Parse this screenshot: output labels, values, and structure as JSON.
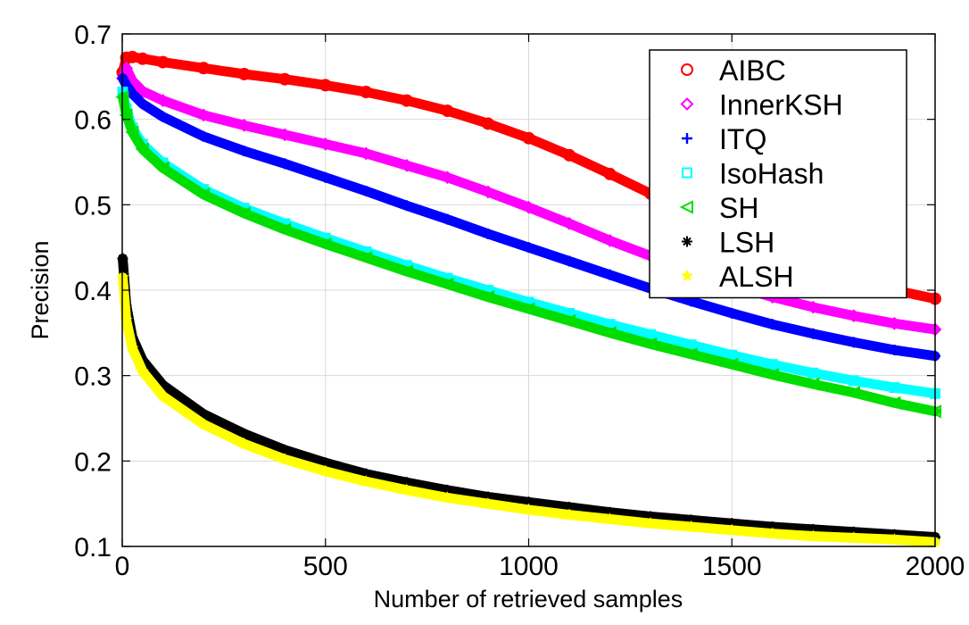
{
  "chart_data": {
    "type": "line",
    "title": "",
    "xlabel": "Number of retrieved samples",
    "ylabel": "Precision",
    "xlim": [
      0,
      2000
    ],
    "ylim": [
      0.1,
      0.7
    ],
    "xticks": [
      0,
      500,
      1000,
      1500,
      2000
    ],
    "xtick_labels": [
      "0",
      "500",
      "1000",
      "1500",
      "2000"
    ],
    "yticks": [
      0.1,
      0.2,
      0.3,
      0.4,
      0.5,
      0.6,
      0.7
    ],
    "ytick_labels": [
      "0.1",
      "0.2",
      "0.3",
      "0.4",
      "0.5",
      "0.6",
      "0.7"
    ],
    "grid": true,
    "legend_position": "top-right",
    "x": [
      1,
      10,
      25,
      50,
      100,
      200,
      300,
      400,
      500,
      600,
      700,
      800,
      900,
      1000,
      1100,
      1200,
      1300,
      1400,
      1500,
      1600,
      1700,
      1800,
      1900,
      2000
    ],
    "series": [
      {
        "name": "AIBC",
        "color": "#ff0000",
        "marker": "circle",
        "values": [
          0.655,
          0.672,
          0.673,
          0.671,
          0.667,
          0.66,
          0.653,
          0.647,
          0.64,
          0.632,
          0.622,
          0.61,
          0.595,
          0.578,
          0.558,
          0.536,
          0.513,
          0.49,
          0.468,
          0.448,
          0.43,
          0.414,
          0.4,
          0.39
        ]
      },
      {
        "name": "InnerKSH",
        "color": "#ff00ff",
        "marker": "diamond",
        "values": [
          0.648,
          0.66,
          0.645,
          0.633,
          0.622,
          0.605,
          0.593,
          0.582,
          0.571,
          0.56,
          0.546,
          0.532,
          0.515,
          0.497,
          0.478,
          0.458,
          0.44,
          0.422,
          0.406,
          0.392,
          0.38,
          0.37,
          0.361,
          0.354
        ]
      },
      {
        "name": "ITQ",
        "color": "#0000ff",
        "marker": "plus",
        "values": [
          0.648,
          0.64,
          0.63,
          0.618,
          0.603,
          0.58,
          0.563,
          0.548,
          0.532,
          0.516,
          0.499,
          0.483,
          0.466,
          0.45,
          0.434,
          0.418,
          0.402,
          0.387,
          0.373,
          0.36,
          0.349,
          0.339,
          0.33,
          0.323
        ]
      },
      {
        "name": "IsoHash",
        "color": "#00ffff",
        "marker": "square",
        "values": [
          0.632,
          0.612,
          0.59,
          0.571,
          0.549,
          0.518,
          0.496,
          0.478,
          0.461,
          0.445,
          0.429,
          0.414,
          0.4,
          0.386,
          0.373,
          0.36,
          0.348,
          0.336,
          0.324,
          0.313,
          0.303,
          0.294,
          0.286,
          0.279
        ]
      },
      {
        "name": "SH",
        "color": "#00dd00",
        "marker": "triangle-left",
        "values": [
          0.626,
          0.605,
          0.585,
          0.565,
          0.543,
          0.512,
          0.49,
          0.471,
          0.454,
          0.438,
          0.422,
          0.407,
          0.392,
          0.378,
          0.364,
          0.35,
          0.337,
          0.325,
          0.313,
          0.301,
          0.29,
          0.28,
          0.268,
          0.258
        ]
      },
      {
        "name": "LSH",
        "color": "#000000",
        "marker": "asterisk",
        "values": [
          0.437,
          0.382,
          0.345,
          0.318,
          0.289,
          0.255,
          0.232,
          0.213,
          0.198,
          0.185,
          0.175,
          0.166,
          0.158,
          0.152,
          0.146,
          0.14,
          0.135,
          0.131,
          0.127,
          0.123,
          0.12,
          0.117,
          0.114,
          0.111
        ]
      },
      {
        "name": "ALSH",
        "color": "#ffff00",
        "marker": "star",
        "values": [
          0.415,
          0.365,
          0.332,
          0.305,
          0.276,
          0.243,
          0.22,
          0.202,
          0.188,
          0.176,
          0.166,
          0.157,
          0.15,
          0.143,
          0.137,
          0.132,
          0.127,
          0.123,
          0.119,
          0.115,
          0.112,
          0.11,
          0.108,
          0.105
        ]
      }
    ]
  }
}
